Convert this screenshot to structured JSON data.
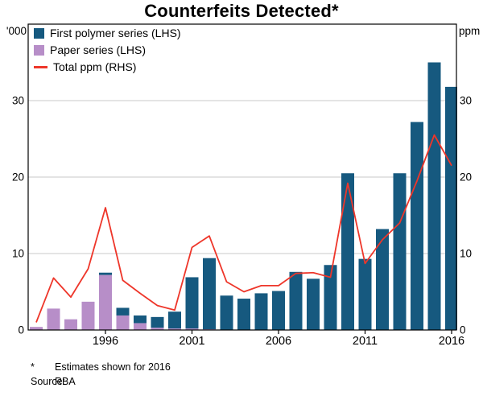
{
  "chart_data": {
    "type": "combo-bar-line",
    "title": "Counterfeits Detected*",
    "x": [
      1992,
      1993,
      1994,
      1995,
      1996,
      1997,
      1998,
      1999,
      2000,
      2001,
      2002,
      2003,
      2004,
      2005,
      2006,
      2007,
      2008,
      2009,
      2010,
      2011,
      2012,
      2013,
      2014,
      2015,
      2016
    ],
    "x_tick_labels": [
      "1996",
      "2001",
      "2006",
      "2011",
      "2016"
    ],
    "left_axis": {
      "unit": "'000",
      "ticks": [
        0,
        10,
        20,
        30
      ],
      "range": [
        0,
        40
      ]
    },
    "right_axis": {
      "unit": "ppm",
      "ticks": [
        0,
        10,
        20,
        30
      ],
      "range": [
        0,
        40
      ]
    },
    "grid": true,
    "stacked": true,
    "legend_position": "top-left",
    "series": [
      {
        "name": "First polymer series (LHS)",
        "type": "bar",
        "axis": "left",
        "color": "#16597f",
        "values": [
          0,
          0,
          0,
          0,
          0.3,
          1.0,
          1.0,
          1.4,
          2.2,
          6.7,
          9.3,
          4.5,
          4.1,
          4.8,
          5.1,
          7.6,
          6.7,
          8.5,
          20.5,
          9.3,
          13.2,
          20.5,
          27.2,
          35.0,
          31.8
        ]
      },
      {
        "name": "Paper series (LHS)",
        "type": "bar",
        "axis": "left",
        "color": "#b78ec8",
        "values": [
          0.4,
          2.8,
          1.4,
          3.7,
          7.2,
          1.9,
          0.9,
          0.3,
          0.2,
          0.2,
          0.1,
          0,
          0,
          0,
          0,
          0,
          0,
          0,
          0,
          0,
          0,
          0,
          0,
          0,
          0
        ]
      },
      {
        "name": "Total ppm (RHS)",
        "type": "line",
        "axis": "right",
        "color": "#ee362a",
        "values": [
          1.0,
          6.8,
          4.3,
          8.0,
          16.0,
          6.5,
          4.8,
          3.2,
          2.6,
          10.8,
          12.3,
          6.3,
          5.0,
          5.8,
          5.8,
          7.4,
          7.5,
          6.9,
          19.2,
          8.7,
          11.8,
          14.0,
          19.5,
          25.5,
          21.5
        ]
      }
    ]
  },
  "footnotes": [
    {
      "marker": "*",
      "text": "Estimates shown for 2016"
    },
    {
      "marker": "Source:",
      "text": "RBA"
    }
  ],
  "style": {
    "grid_color": "#c8c8c8",
    "border_color": "#000000",
    "background": "#ffffff"
  }
}
